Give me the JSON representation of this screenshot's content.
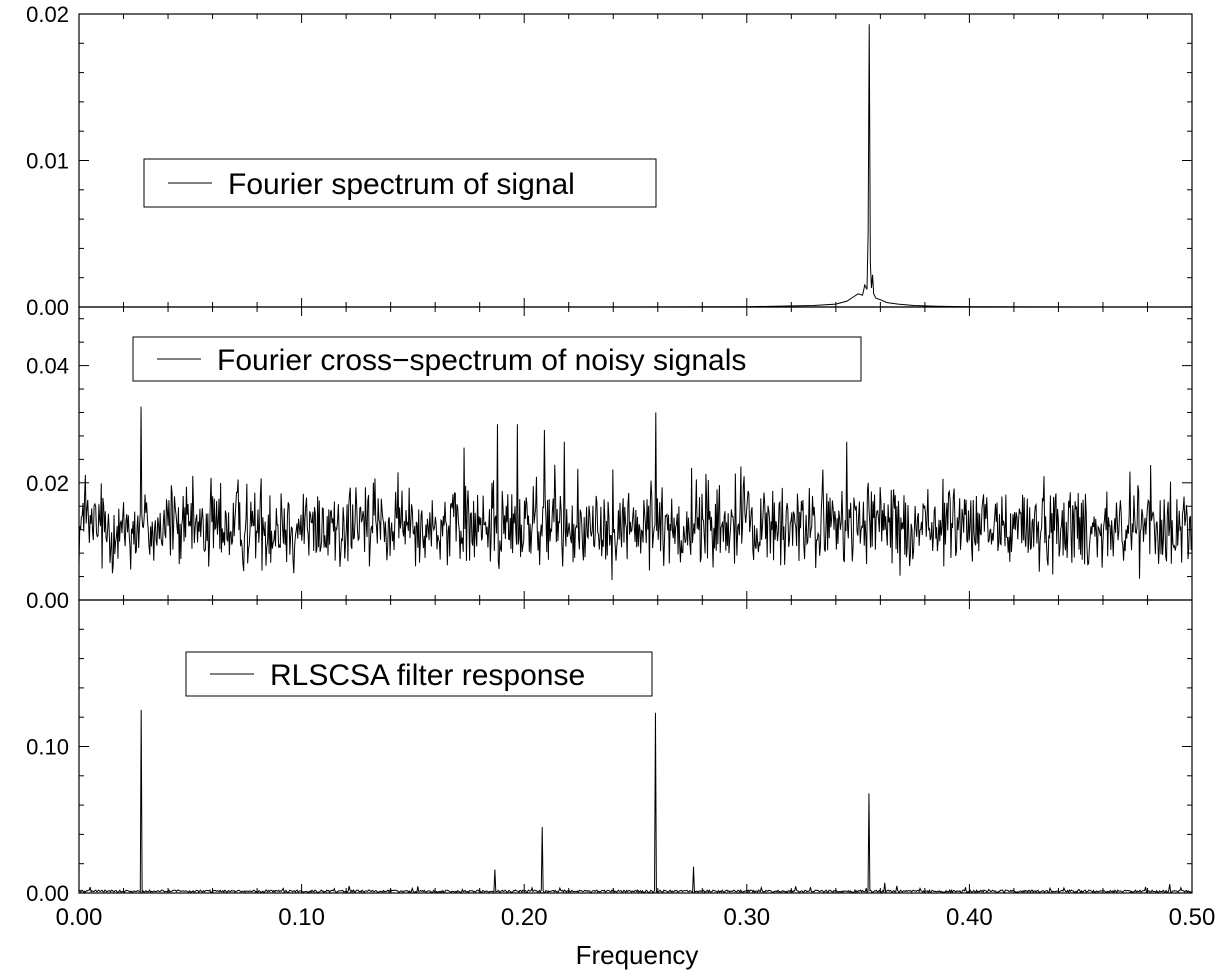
{
  "chart_data": [
    {
      "type": "line",
      "title": "",
      "xlabel": "",
      "ylabel": "",
      "xlim": [
        0.0,
        0.5
      ],
      "ylim": [
        0.0,
        0.02
      ],
      "yticks": [
        "0.00",
        "0.01",
        "0.02"
      ],
      "legend": {
        "position": "upper-left",
        "entries": [
          "Fourier spectrum of signal"
        ]
      },
      "grid": false,
      "series": [
        {
          "name": "Fourier spectrum of signal",
          "x": [
            0.0,
            0.25,
            0.3,
            0.33,
            0.34,
            0.345,
            0.348,
            0.35,
            0.352,
            0.353,
            0.354,
            0.3545,
            0.355,
            0.3555,
            0.356,
            0.3565,
            0.357,
            0.358,
            0.36,
            0.363,
            0.368,
            0.375,
            0.385,
            0.4,
            0.45,
            0.5
          ],
          "y": [
            0.0,
            0.0,
            2e-05,
            0.0001,
            0.0002,
            0.0004,
            0.0007,
            0.0009,
            0.0008,
            0.0015,
            0.0012,
            0.005,
            0.0193,
            0.003,
            0.0013,
            0.0022,
            0.0009,
            0.0006,
            0.0005,
            0.0003,
            0.0002,
            0.0001,
            5e-05,
            2e-05,
            0.0,
            0.0
          ]
        }
      ]
    },
    {
      "type": "line",
      "title": "",
      "xlabel": "",
      "ylabel": "",
      "xlim": [
        0.0,
        0.5
      ],
      "ylim": [
        0.0,
        0.05
      ],
      "yticks": [
        "0.00",
        "0.02",
        "0.04"
      ],
      "legend": {
        "position": "top-left",
        "entries": [
          "Fourier cross−spectrum of noisy signals"
        ]
      },
      "grid": false,
      "series": [
        {
          "name": "Fourier cross−spectrum of noisy signals",
          "description_values": "dense noise band roughly between 0.003 and 0.021 with mean about 0.012",
          "mean": 0.012,
          "noise_min": 0.002,
          "noise_max": 0.022,
          "peaks": [
            {
              "x": 0.028,
              "y": 0.033
            },
            {
              "x": 0.188,
              "y": 0.03
            },
            {
              "x": 0.197,
              "y": 0.03
            },
            {
              "x": 0.209,
              "y": 0.029
            },
            {
              "x": 0.259,
              "y": 0.032
            },
            {
              "x": 0.218,
              "y": 0.027
            },
            {
              "x": 0.173,
              "y": 0.026
            },
            {
              "x": 0.345,
              "y": 0.027
            }
          ]
        }
      ]
    },
    {
      "type": "line",
      "title": "",
      "xlabel": "Frequency",
      "ylabel": "",
      "xlim": [
        0.0,
        0.5
      ],
      "ylim": [
        0.0,
        0.2
      ],
      "xticks": [
        "0.00",
        "0.10",
        "0.20",
        "0.30",
        "0.40",
        "0.50"
      ],
      "yticks": [
        "0.00",
        "0.10"
      ],
      "legend": {
        "position": "top-left",
        "entries": [
          "RLSCSA filter response"
        ]
      },
      "grid": false,
      "series": [
        {
          "name": "RLSCSA filter response",
          "peaks": [
            {
              "x": 0.028,
              "y": 0.125
            },
            {
              "x": 0.187,
              "y": 0.016
            },
            {
              "x": 0.208,
              "y": 0.045
            },
            {
              "x": 0.259,
              "y": 0.123
            },
            {
              "x": 0.276,
              "y": 0.018
            },
            {
              "x": 0.355,
              "y": 0.068
            },
            {
              "x": 0.362,
              "y": 0.007
            },
            {
              "x": 0.005,
              "y": 0.004
            },
            {
              "x": 0.49,
              "y": 0.006
            }
          ],
          "baseline": 0.001
        }
      ]
    }
  ]
}
